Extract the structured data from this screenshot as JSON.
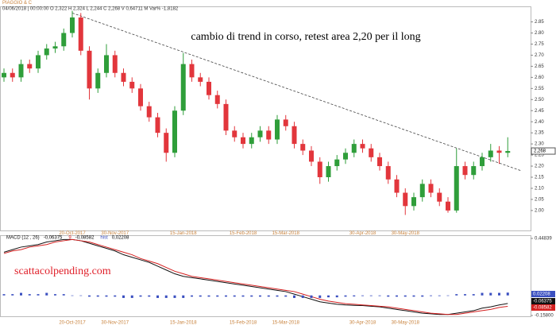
{
  "watermark": "scattacolpending.com",
  "chart_data": [
    {
      "type": "candlestick",
      "title": "PIAGGIO & C",
      "subtitle": "04/06/2018 | 00:00:00  O 2,322  H 2,324  L 2,244  C 2,268  V 0,64711 M  Var% -1,8182",
      "annotation": "cambio di trend in corso, retest area 2,20 per il long",
      "categories": [
        null,
        null,
        null,
        null,
        null,
        null,
        null,
        null,
        "20-Oct-2017",
        null,
        null,
        null,
        null,
        "30-Nov-2017",
        null,
        null,
        null,
        null,
        null,
        null,
        null,
        "15-Jan-2018",
        null,
        null,
        null,
        null,
        null,
        null,
        "15-Feb-2018",
        null,
        null,
        null,
        null,
        "15-Mar-2018",
        null,
        null,
        null,
        null,
        null,
        null,
        null,
        null,
        "30-Apr-2018",
        null,
        null,
        null,
        null,
        "30-May-2018",
        null,
        null,
        null,
        null,
        null,
        null,
        null,
        null,
        null,
        null,
        null,
        null
      ],
      "open": [
        2.6,
        2.62,
        2.6,
        2.66,
        2.64,
        2.7,
        2.73,
        2.74,
        2.8,
        2.87,
        2.72,
        2.55,
        2.62,
        2.7,
        2.62,
        2.58,
        2.55,
        2.47,
        2.42,
        2.35,
        2.26,
        2.45,
        2.66,
        2.6,
        2.58,
        2.52,
        2.48,
        2.36,
        2.33,
        2.3,
        2.33,
        2.36,
        2.32,
        2.41,
        2.38,
        2.3,
        2.27,
        2.22,
        2.15,
        2.2,
        2.23,
        2.26,
        2.3,
        2.28,
        2.24,
        2.2,
        2.14,
        2.08,
        2.02,
        2.06,
        2.12,
        2.08,
        2.04,
        2.0,
        2.2,
        2.16,
        2.2,
        2.24,
        2.27,
        2.26
      ],
      "high": [
        2.64,
        2.64,
        2.68,
        2.68,
        2.72,
        2.75,
        2.76,
        2.82,
        2.9,
        2.89,
        2.74,
        2.64,
        2.75,
        2.72,
        2.64,
        2.6,
        2.57,
        2.49,
        2.44,
        2.37,
        2.47,
        2.71,
        2.68,
        2.62,
        2.6,
        2.54,
        2.5,
        2.38,
        2.35,
        2.35,
        2.38,
        2.38,
        2.43,
        2.43,
        2.4,
        2.32,
        2.29,
        2.24,
        2.22,
        2.25,
        2.28,
        2.32,
        2.32,
        2.3,
        2.26,
        2.22,
        2.16,
        2.1,
        2.08,
        2.14,
        2.14,
        2.1,
        2.06,
        2.28,
        2.22,
        2.22,
        2.26,
        2.3,
        2.29,
        2.33
      ],
      "low": [
        2.58,
        2.58,
        2.58,
        2.62,
        2.62,
        2.68,
        2.71,
        2.72,
        2.78,
        2.7,
        2.5,
        2.53,
        2.6,
        2.6,
        2.56,
        2.53,
        2.45,
        2.4,
        2.33,
        2.22,
        2.24,
        2.43,
        2.58,
        2.56,
        2.5,
        2.46,
        2.34,
        2.31,
        2.28,
        2.28,
        2.31,
        2.3,
        2.3,
        2.36,
        2.28,
        2.25,
        2.2,
        2.12,
        2.13,
        2.18,
        2.21,
        2.24,
        2.26,
        2.22,
        2.18,
        2.12,
        2.06,
        1.98,
        2.0,
        2.04,
        2.06,
        2.02,
        1.99,
        1.99,
        2.14,
        2.14,
        2.18,
        2.22,
        2.21,
        2.24
      ],
      "close": [
        2.62,
        2.6,
        2.66,
        2.64,
        2.7,
        2.73,
        2.74,
        2.8,
        2.87,
        2.72,
        2.55,
        2.62,
        2.7,
        2.62,
        2.58,
        2.55,
        2.47,
        2.42,
        2.35,
        2.26,
        2.45,
        2.66,
        2.6,
        2.58,
        2.52,
        2.48,
        2.36,
        2.33,
        2.3,
        2.33,
        2.36,
        2.32,
        2.41,
        2.38,
        2.3,
        2.27,
        2.22,
        2.15,
        2.2,
        2.23,
        2.26,
        2.3,
        2.28,
        2.24,
        2.2,
        2.14,
        2.08,
        2.02,
        2.06,
        2.12,
        2.08,
        2.04,
        2.0,
        2.2,
        2.16,
        2.2,
        2.24,
        2.27,
        2.26,
        2.268
      ],
      "last_label": "2,268",
      "up_color": "#2f9e3a",
      "down_color": "#e2363c",
      "ylim": [
        1.91,
        2.92
      ],
      "yticks": [
        {
          "value": 2,
          "label": "2.00"
        },
        2.05,
        {
          "value": 2.1,
          "label": "2.10"
        },
        2.15,
        {
          "value": 2.2,
          "label": "2.20"
        },
        2.25,
        {
          "value": 2.3,
          "label": "2.30"
        },
        2.35,
        {
          "value": 2.4,
          "label": "2.40"
        },
        2.45,
        {
          "value": 2.5,
          "label": "2.50"
        },
        2.55,
        {
          "value": 2.6,
          "label": "2.60"
        },
        2.65,
        {
          "value": 2.7,
          "label": "2.70"
        },
        2.75,
        {
          "value": 2.8,
          "label": "2.80"
        },
        2.85
      ],
      "trendline": {
        "x": [
          8,
          60.5
        ],
        "y": [
          2.89,
          2.18
        ]
      }
    },
    {
      "type": "macd",
      "categories": [
        null,
        null,
        null,
        null,
        null,
        null,
        null,
        null,
        "20-Oct-2017",
        null,
        null,
        null,
        null,
        "30-Nov-2017",
        null,
        null,
        null,
        null,
        null,
        null,
        null,
        "15-Jan-2018",
        null,
        null,
        null,
        null,
        null,
        null,
        "15-Feb-2018",
        null,
        null,
        null,
        null,
        "15-Mar-2018",
        null,
        null,
        null,
        null,
        null,
        null,
        null,
        null,
        "30-Apr-2018",
        null,
        null,
        null,
        null,
        "30-May-2018",
        null,
        null,
        null,
        null,
        null,
        null,
        null,
        null,
        null,
        null,
        null,
        null
      ],
      "series": [
        {
          "name": "MACD (12 , 26)",
          "legend_value": "-0,06375",
          "last_label": "-0.06375",
          "color": "#111111",
          "kind": "line",
          "values": [
            0.34,
            0.36,
            0.38,
            0.39,
            0.4,
            0.42,
            0.43,
            0.44,
            0.44,
            0.43,
            0.41,
            0.39,
            0.37,
            0.35,
            0.32,
            0.3,
            0.28,
            0.26,
            0.23,
            0.2,
            0.17,
            0.15,
            0.14,
            0.13,
            0.12,
            0.11,
            0.1,
            0.09,
            0.08,
            0.07,
            0.06,
            0.05,
            0.04,
            0.03,
            0.01,
            -0.01,
            -0.03,
            -0.05,
            -0.06,
            -0.07,
            -0.075,
            -0.078,
            -0.08,
            -0.085,
            -0.09,
            -0.1,
            -0.11,
            -0.12,
            -0.13,
            -0.14,
            -0.145,
            -0.15,
            -0.15,
            -0.14,
            -0.13,
            -0.12,
            -0.1,
            -0.09,
            -0.075,
            -0.06375
          ]
        },
        {
          "name": "9",
          "legend_value": "-0,08582",
          "last_label": "-0.08582",
          "color": "#d42020",
          "kind": "line",
          "values": [
            0.33,
            0.35,
            0.36,
            0.38,
            0.39,
            0.4,
            0.42,
            0.43,
            0.44,
            0.43,
            0.42,
            0.4,
            0.38,
            0.36,
            0.34,
            0.32,
            0.29,
            0.27,
            0.25,
            0.22,
            0.19,
            0.17,
            0.15,
            0.14,
            0.13,
            0.12,
            0.11,
            0.1,
            0.09,
            0.08,
            0.07,
            0.06,
            0.05,
            0.04,
            0.03,
            0.01,
            -0.01,
            -0.03,
            -0.045,
            -0.055,
            -0.065,
            -0.07,
            -0.075,
            -0.08,
            -0.085,
            -0.09,
            -0.1,
            -0.11,
            -0.12,
            -0.13,
            -0.14,
            -0.145,
            -0.15,
            -0.15,
            -0.14,
            -0.13,
            -0.12,
            -0.11,
            -0.095,
            -0.08582
          ]
        },
        {
          "name": "hist",
          "legend_value": "0,02208",
          "last_label": "0.02208",
          "color": "#3a4fc0",
          "kind": "bar",
          "values": [
            0.01,
            0.01,
            0.02,
            0.01,
            0.01,
            0.02,
            0.01,
            0.01,
            0,
            0,
            -0.01,
            -0.01,
            -0.01,
            -0.01,
            -0.02,
            -0.02,
            -0.01,
            -0.01,
            -0.02,
            -0.02,
            -0.02,
            -0.02,
            -0.01,
            -0.01,
            -0.01,
            -0.01,
            -0.01,
            -0.01,
            -0.01,
            -0.01,
            -0.01,
            -0.01,
            -0.01,
            -0.01,
            -0.02,
            -0.02,
            -0.02,
            -0.02,
            -0.015,
            -0.015,
            -0.01,
            -0.008,
            -0.005,
            -0.005,
            -0.005,
            -0.01,
            -0.01,
            -0.01,
            -0.01,
            -0.01,
            -0.005,
            -0.005,
            0,
            0.01,
            0.01,
            0.01,
            0.02,
            0.02,
            0.02,
            0.02208
          ]
        }
      ],
      "ylim": [
        -0.158,
        0.44839
      ],
      "yticks": [
        {
          "value": -0.158,
          "label": "-0.15800"
        },
        0.44839
      ]
    }
  ]
}
